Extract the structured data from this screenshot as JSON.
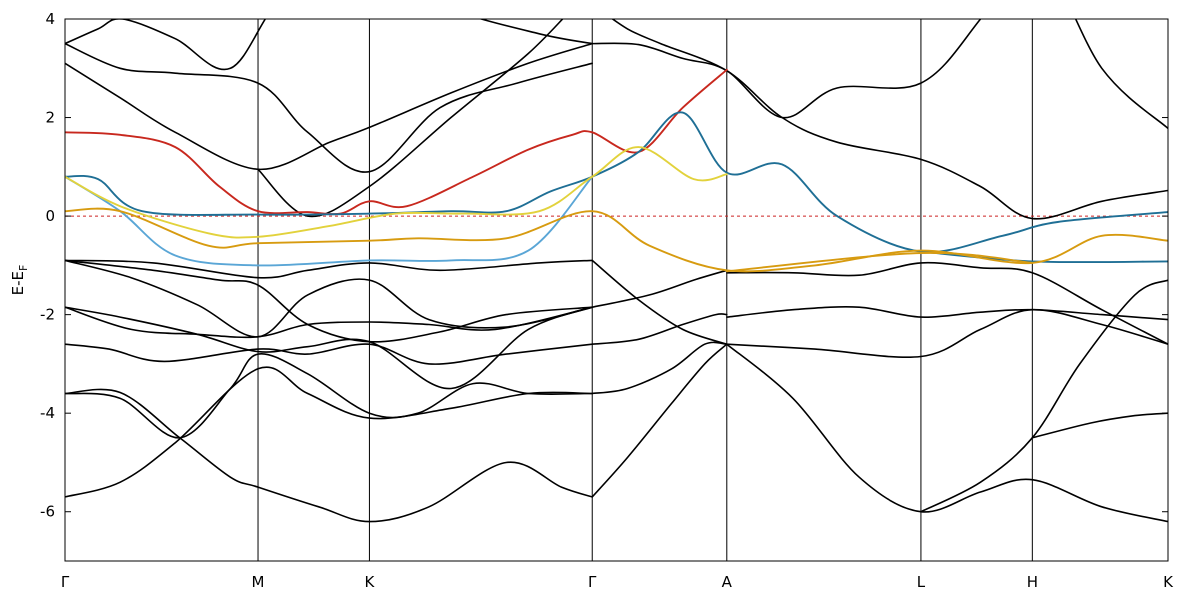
{
  "chart_data": {
    "type": "line",
    "title": "",
    "xlabel": "",
    "ylabel": {
      "main": "E-E",
      "sub": "F"
    },
    "ylim": [
      -7,
      4
    ],
    "y_ticks": [
      4,
      2,
      0,
      -2,
      -4,
      -6
    ],
    "grid": false,
    "fermi_level": {
      "y": 0,
      "style": "dashed",
      "color": "#cc2222"
    },
    "high_symmetry_points": [
      {
        "label": "Γ",
        "k": 0.0
      },
      {
        "label": "M",
        "k": 0.175
      },
      {
        "label": "K",
        "k": 0.276
      },
      {
        "label": "Γ",
        "k": 0.478
      },
      {
        "label": "A",
        "k": 0.6
      },
      {
        "label": "L",
        "k": 0.776
      },
      {
        "label": "H",
        "k": 0.877
      },
      {
        "label": "K",
        "k": 1.0
      }
    ],
    "colors": {
      "black": "#000000",
      "red": "#c8281e",
      "dark_blue": "#1f6f95",
      "light_blue": "#5aa6d6",
      "gold": "#d79b10",
      "yellow": "#e2d23c",
      "fermi": "#cc2222"
    },
    "series": [
      {
        "color": "black",
        "x": [
          0,
          0.05,
          0.1,
          0.175,
          0.22,
          0.276,
          0.35,
          0.42,
          0.478
        ],
        "y": [
          -5.7,
          -5.4,
          -4.6,
          -3.1,
          -3.6,
          -4.1,
          -3.9,
          -3.6,
          -3.6
        ]
      },
      {
        "color": "black",
        "x": [
          0,
          0.05,
          0.104,
          0.15,
          0.175,
          0.23,
          0.276,
          0.33,
          0.4,
          0.45,
          0.478
        ],
        "y": [
          -3.6,
          -3.58,
          -4.5,
          -5.3,
          -5.5,
          -5.9,
          -6.2,
          -5.9,
          -5.0,
          -5.5,
          -5.7
        ]
      },
      {
        "color": "black",
        "x": [
          0,
          0.05,
          0.104,
          0.15,
          0.175,
          0.22,
          0.276,
          0.32,
          0.37,
          0.42,
          0.478
        ],
        "y": [
          -3.6,
          -3.7,
          -4.5,
          -3.5,
          -2.8,
          -3.2,
          -4.0,
          -4.0,
          -3.4,
          -3.6,
          -3.6
        ]
      },
      {
        "color": "black",
        "x": [
          0,
          0.04,
          0.09,
          0.175,
          0.22,
          0.276,
          0.33,
          0.4,
          0.478
        ],
        "y": [
          -2.6,
          -2.7,
          -2.95,
          -2.7,
          -2.8,
          -2.6,
          -3.0,
          -2.8,
          -2.6
        ]
      },
      {
        "color": "black",
        "x": [
          0,
          0.05,
          0.12,
          0.175,
          0.22,
          0.276,
          0.35,
          0.42,
          0.478
        ],
        "y": [
          -1.85,
          -2.05,
          -2.4,
          -2.75,
          -2.65,
          -2.55,
          -3.5,
          -2.3,
          -1.85
        ]
      },
      {
        "color": "black",
        "x": [
          0,
          0.06,
          0.12,
          0.175,
          0.22,
          0.276,
          0.33,
          0.39,
          0.478
        ],
        "y": [
          -1.85,
          -2.3,
          -2.4,
          -2.45,
          -2.2,
          -2.15,
          -2.2,
          -2.3,
          -1.85
        ]
      },
      {
        "color": "black",
        "x": [
          0,
          0.08,
          0.14,
          0.175,
          0.22,
          0.276,
          0.34,
          0.4,
          0.478
        ],
        "y": [
          -0.9,
          -1.1,
          -1.3,
          -1.4,
          -2.2,
          -2.55,
          -2.35,
          -2.0,
          -1.85
        ]
      },
      {
        "color": "black",
        "x": [
          0,
          0.06,
          0.12,
          0.175,
          0.22,
          0.276,
          0.33,
          0.4,
          0.478
        ],
        "y": [
          -0.9,
          -1.25,
          -1.8,
          -2.45,
          -1.6,
          -1.3,
          -2.1,
          -2.25,
          -1.85
        ]
      },
      {
        "color": "black",
        "x": [
          0,
          0.08,
          0.175,
          0.22,
          0.276,
          0.34,
          0.43,
          0.478
        ],
        "y": [
          -0.9,
          -0.95,
          -1.25,
          -1.1,
          -0.95,
          -1.1,
          -0.95,
          -0.9
        ]
      },
      {
        "color": "black",
        "x": [
          0.478,
          0.52,
          0.56,
          0.6
        ],
        "y": [
          -0.9,
          -1.7,
          -2.3,
          -2.6
        ]
      },
      {
        "color": "black",
        "x": [
          0.478,
          0.53,
          0.57,
          0.6
        ],
        "y": [
          -1.85,
          -1.6,
          -1.3,
          -1.1
        ]
      },
      {
        "color": "black",
        "x": [
          0.478,
          0.52,
          0.56,
          0.59,
          0.6
        ],
        "y": [
          -2.6,
          -2.5,
          -2.2,
          -2.0,
          -2.0
        ]
      },
      {
        "color": "black",
        "x": [
          0.478,
          0.51,
          0.55,
          0.58,
          0.6
        ],
        "y": [
          -3.6,
          -3.5,
          -3.1,
          -2.6,
          -2.6
        ]
      },
      {
        "color": "black",
        "x": [
          0.478,
          0.51,
          0.55,
          0.58,
          0.6
        ],
        "y": [
          -5.7,
          -4.9,
          -3.8,
          -3.0,
          -2.6
        ]
      },
      {
        "color": "black",
        "x": [
          0.6,
          0.66,
          0.72,
          0.776,
          0.83,
          0.877,
          0.94,
          1.0
        ],
        "y": [
          -2.6,
          -3.7,
          -5.3,
          -6.0,
          -5.6,
          -5.35,
          -5.9,
          -6.2
        ]
      },
      {
        "color": "black",
        "x": [
          0.6,
          0.68,
          0.776,
          0.83,
          0.877,
          0.94,
          1.0
        ],
        "y": [
          -2.6,
          -2.7,
          -2.85,
          -2.3,
          -1.9,
          -2.2,
          -2.6
        ]
      },
      {
        "color": "black",
        "x": [
          0.6,
          0.66,
          0.72,
          0.776,
          0.83,
          0.877,
          0.94,
          1.0
        ],
        "y": [
          -2.05,
          -1.9,
          -1.85,
          -2.05,
          -1.95,
          -1.9,
          -2.0,
          -2.1
        ]
      },
      {
        "color": "black",
        "x": [
          0.6,
          0.66,
          0.72,
          0.776,
          0.83,
          0.877,
          0.94,
          1.0
        ],
        "y": [
          -1.15,
          -1.15,
          -1.2,
          -0.95,
          -1.05,
          -1.15,
          -1.9,
          -2.6
        ]
      },
      {
        "color": "black",
        "x": [
          0.776,
          0.83,
          0.877,
          0.92,
          0.97,
          1.0
        ],
        "y": [
          -6.0,
          -5.4,
          -4.5,
          -3.0,
          -1.6,
          -1.3
        ]
      },
      {
        "color": "black",
        "x": [
          0.877,
          0.93,
          0.97,
          1.0
        ],
        "y": [
          -4.5,
          -4.2,
          -4.05,
          -4.0
        ]
      },
      {
        "color": "black",
        "x": [
          0,
          0.05,
          0.1,
          0.175,
          0.24,
          0.276,
          0.35,
          0.42,
          0.478
        ],
        "y": [
          3.1,
          2.4,
          1.7,
          0.95,
          1.5,
          1.8,
          2.5,
          3.1,
          3.5
        ]
      },
      {
        "color": "black",
        "x": [
          0,
          0.05,
          0.1,
          0.175,
          0.22,
          0.276,
          0.34,
          0.41,
          0.478
        ],
        "y": [
          3.5,
          3.0,
          2.9,
          2.7,
          1.7,
          0.9,
          2.2,
          2.7,
          3.1
        ]
      },
      {
        "color": "black",
        "x": [
          0,
          0.03,
          0.052,
          0.1,
          0.15,
          0.2,
          0.276,
          0.35,
          0.43,
          0.478
        ],
        "y": [
          3.5,
          3.8,
          4.0,
          3.6,
          3.0,
          4.5,
          5.0,
          4.2,
          3.7,
          3.5
        ]
      },
      {
        "color": "black",
        "x": [
          0.175,
          0.22,
          0.276,
          0.35,
          0.42,
          0.46,
          0.478
        ],
        "y": [
          0.95,
          0.0,
          0.6,
          2.0,
          3.3,
          4.2,
          4.5
        ]
      },
      {
        "color": "black",
        "x": [
          0.478,
          0.52,
          0.56,
          0.6,
          0.65,
          0.7,
          0.776,
          0.83,
          0.877,
          0.94,
          1.0
        ],
        "y": [
          3.5,
          3.48,
          3.2,
          2.95,
          2.0,
          2.6,
          2.7,
          4.0,
          5.5,
          3.0,
          1.78
        ]
      },
      {
        "color": "black",
        "x": [
          0.478,
          0.51,
          0.54,
          0.6,
          0.65,
          0.7,
          0.776,
          0.83,
          0.877,
          0.94,
          1.0
        ],
        "y": [
          4.3,
          3.8,
          3.5,
          2.95,
          2.0,
          1.5,
          1.15,
          0.6,
          -0.05,
          0.3,
          0.52
        ]
      },
      {
        "color": "red",
        "x": [
          0,
          0.05,
          0.1,
          0.14,
          0.175,
          0.22,
          0.25,
          0.276,
          0.31,
          0.37,
          0.42,
          0.46,
          0.478,
          0.52,
          0.56,
          0.6
        ],
        "y": [
          1.7,
          1.65,
          1.4,
          0.6,
          0.1,
          0.08,
          0.05,
          0.3,
          0.2,
          0.8,
          1.35,
          1.65,
          1.7,
          1.3,
          2.2,
          2.97
        ]
      },
      {
        "color": "dark_blue",
        "x": [
          0,
          0.03,
          0.07,
          0.175,
          0.276,
          0.35,
          0.4,
          0.44,
          0.478,
          0.52,
          0.56,
          0.6,
          0.65,
          0.7,
          0.776,
          0.85,
          0.9,
          1.0
        ],
        "y": [
          0.8,
          0.75,
          0.1,
          0.03,
          0.05,
          0.1,
          0.1,
          0.5,
          0.8,
          1.3,
          2.1,
          0.88,
          1.05,
          0.0,
          -0.72,
          -0.4,
          -0.12,
          0.08
        ]
      },
      {
        "color": "light_blue",
        "x": [
          0,
          0.05,
          0.1,
          0.175,
          0.276,
          0.35,
          0.42,
          0.478
        ],
        "y": [
          0.8,
          0.1,
          -0.8,
          -1.0,
          -0.9,
          -0.9,
          -0.7,
          0.8
        ]
      },
      {
        "color": "gold",
        "x": [
          0,
          0.05,
          0.13,
          0.175,
          0.276,
          0.32,
          0.4,
          0.478,
          0.53,
          0.6,
          0.68,
          0.776,
          0.877,
          0.94,
          1.0
        ],
        "y": [
          0.1,
          0.1,
          -0.6,
          -0.55,
          -0.5,
          -0.45,
          -0.45,
          0.1,
          -0.6,
          -1.1,
          -1.0,
          -0.7,
          -0.95,
          -0.4,
          -0.5
        ]
      },
      {
        "color": "yellow",
        "x": [
          0,
          0.05,
          0.13,
          0.175,
          0.24,
          0.3,
          0.36,
          0.43,
          0.478,
          0.52,
          0.57,
          0.6
        ],
        "y": [
          0.8,
          0.2,
          -0.35,
          -0.42,
          -0.2,
          0.05,
          0.05,
          0.1,
          0.8,
          1.4,
          0.75,
          0.85
        ]
      },
      {
        "color": "dark_blue",
        "x": [
          0.776,
          0.877,
          1.0
        ],
        "y": [
          -0.72,
          -0.92,
          -0.92
        ]
      },
      {
        "color": "gold",
        "x": [
          0.6,
          0.776,
          0.877
        ],
        "y": [
          -1.12,
          -0.75,
          -0.95
        ]
      }
    ]
  }
}
